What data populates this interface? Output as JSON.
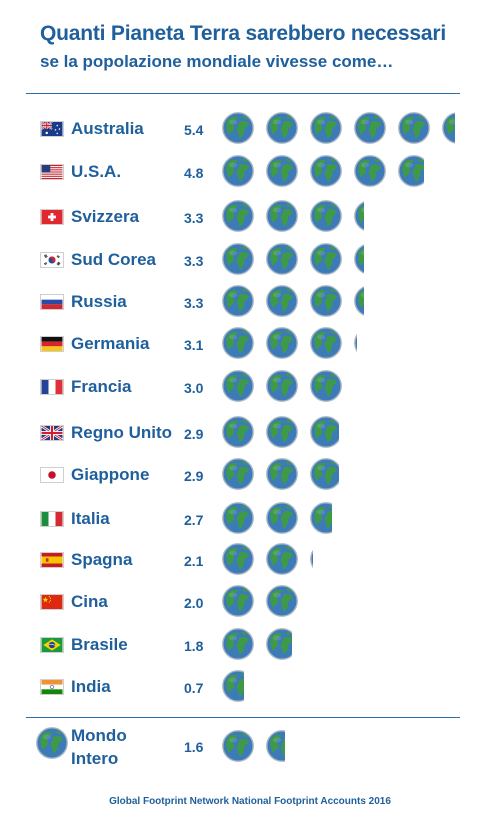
{
  "header": {
    "title": "Quanti Pianeta Terra sarebbero necessari",
    "subtitle": "se la popolazione mondiale vivesse come…"
  },
  "colors": {
    "text": "#1f5f9c",
    "ocean": "#3d7ab8",
    "land": "#3f9a47",
    "rim": "#a9b6c2"
  },
  "chart_data": {
    "type": "bar",
    "unit_icon": "earth-globe-icon",
    "categories": [
      "Australia",
      "U.S.A.",
      "Svizzera",
      "Sud Corea",
      "Russia",
      "Germania",
      "Francia",
      "Regno Unito",
      "Giappone",
      "Italia",
      "Spagna",
      "Cina",
      "Brasile",
      "India"
    ],
    "values": [
      5.4,
      4.8,
      3.3,
      3.3,
      3.3,
      3.1,
      3.0,
      2.9,
      2.9,
      2.7,
      2.1,
      2.0,
      1.8,
      0.7
    ],
    "value_labels": [
      "5.4",
      "4.8",
      "3.3",
      "3.3",
      "3.3",
      "3.1",
      "3.0",
      "2.9",
      "2.9",
      "2.7",
      "2.1",
      "2.0",
      "1.8",
      "0.7"
    ],
    "flags": [
      "flag-australia-icon",
      "flag-usa-icon",
      "flag-switzerland-icon",
      "flag-south-korea-icon",
      "flag-russia-icon",
      "flag-germany-icon",
      "flag-france-icon",
      "flag-uk-icon",
      "flag-japan-icon",
      "flag-italy-icon",
      "flag-spain-icon",
      "flag-china-icon",
      "flag-brazil-icon",
      "flag-india-icon"
    ],
    "world": {
      "label_line1": "Mondo",
      "label_line2": "Intero",
      "value": 1.6,
      "value_label": "1.6"
    },
    "source": "Global Footprint Network National Footprint Accounts 2016"
  }
}
